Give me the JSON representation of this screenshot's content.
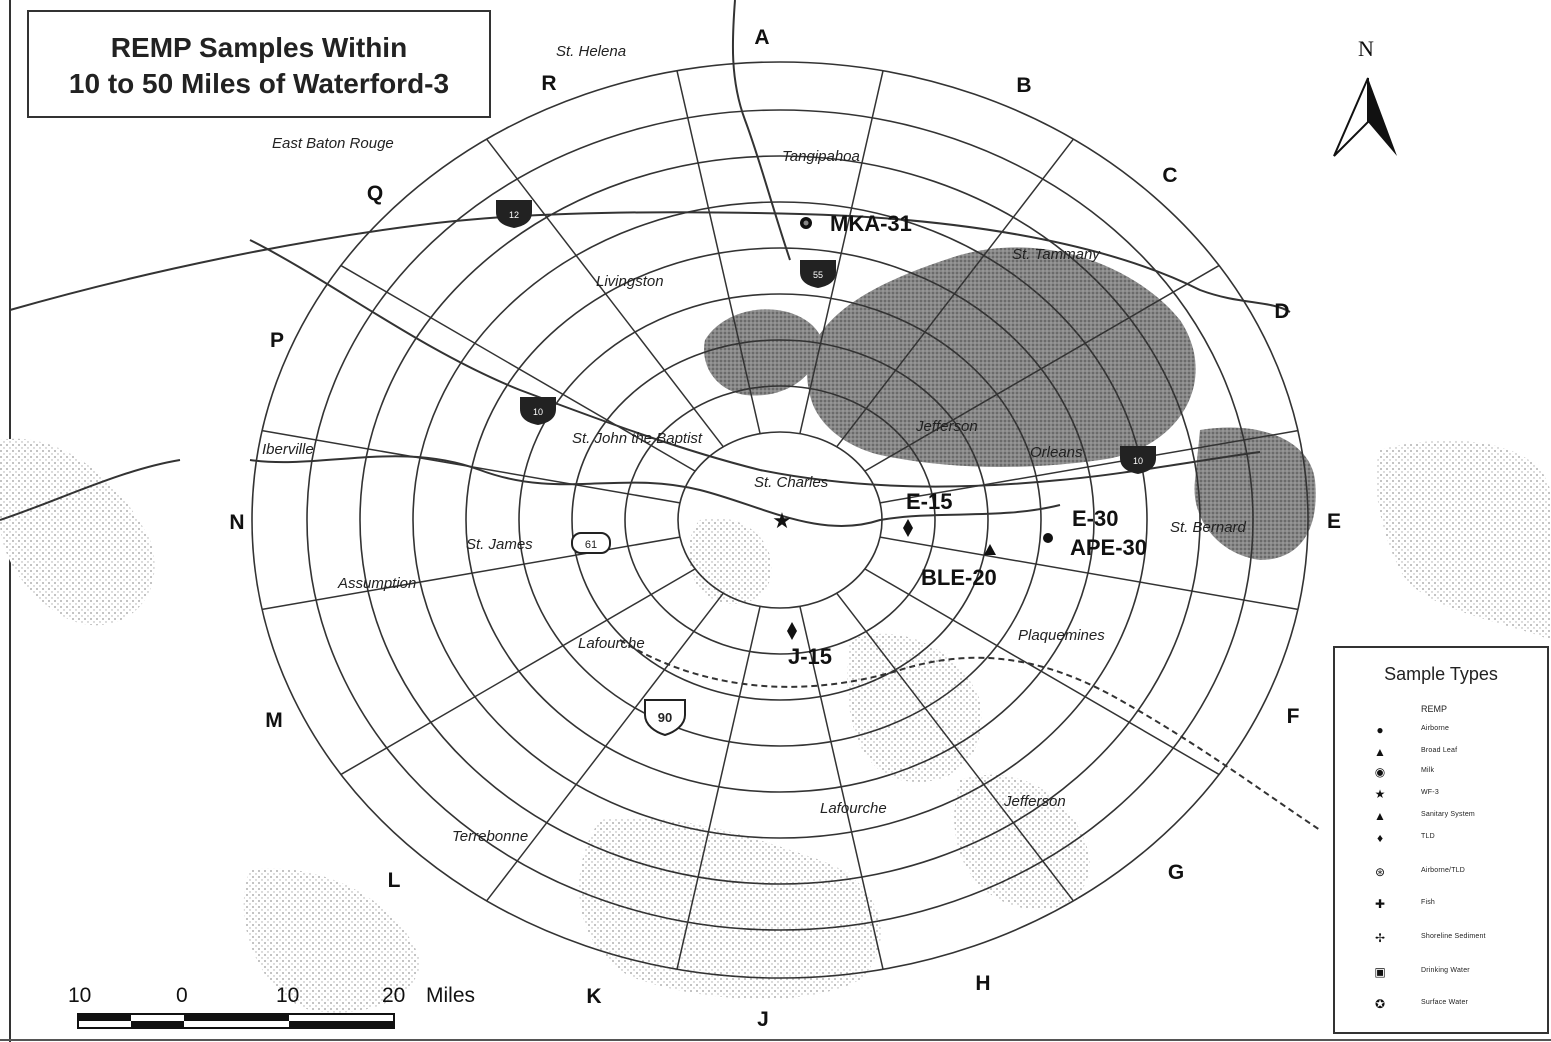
{
  "map": {
    "title_line1": "REMP Samples Within",
    "title_line2": "10  to 50 Miles of Waterford-3",
    "north_label": "N",
    "sectors": [
      "A",
      "B",
      "C",
      "D",
      "E",
      "F",
      "G",
      "H",
      "J",
      "K",
      "L",
      "M",
      "N",
      "P",
      "Q",
      "R"
    ],
    "parishes": [
      "St. Helena",
      "East Baton Rouge",
      "Tangipahoa",
      "St. Tammany",
      "Livingston",
      "St. John the Baptist",
      "Iberville",
      "Jefferson",
      "Orleans",
      "St. Charles",
      "St. James",
      "Assumption",
      "St. Bernard",
      "Lafourche",
      "Plaquemines",
      "Lafourche",
      "Jefferson",
      "Terrebonne"
    ],
    "stations": [
      "MKA-31",
      "E-15",
      "E-30",
      "APE-30",
      "BLE-20",
      "J-15"
    ],
    "highway_shields": [
      "12",
      "55",
      "10",
      "10",
      "61",
      "90"
    ],
    "scale": {
      "labels": [
        "10",
        "0",
        "10",
        "20"
      ],
      "units": "Miles"
    }
  },
  "legend": {
    "title": "Sample Types",
    "subtitle": "REMP",
    "items": [
      {
        "label": "Airborne",
        "icon": "filled-circle-icon",
        "glyph": "●"
      },
      {
        "label": "Broad Leaf",
        "icon": "triangle-icon",
        "glyph": "▲"
      },
      {
        "label": "Milk",
        "icon": "circle-dot-icon",
        "glyph": "◉"
      },
      {
        "label": "WF-3",
        "icon": "star-icon",
        "glyph": "★"
      },
      {
        "label": "Sanitary System",
        "icon": "outline-triangle-icon",
        "glyph": "▲"
      },
      {
        "label": "TLD",
        "icon": "diamond-icon",
        "glyph": "♦"
      },
      {
        "label": "Airborne/TLD",
        "icon": "combo-icon",
        "glyph": "⊛"
      },
      {
        "label": "Fish",
        "icon": "cross-icon",
        "glyph": "✚"
      },
      {
        "label": "Shoreline Sediment",
        "icon": "sediment-icon",
        "glyph": "✢"
      },
      {
        "label": "Drinking Water",
        "icon": "square-icon",
        "glyph": "▣"
      },
      {
        "label": "Surface Water",
        "icon": "ring-icon",
        "glyph": "✪"
      }
    ]
  },
  "colors": {
    "ink": "#111111",
    "grid": "#333333",
    "land_fill": "#8a8a8a",
    "stipple": "#b0b0b0"
  }
}
